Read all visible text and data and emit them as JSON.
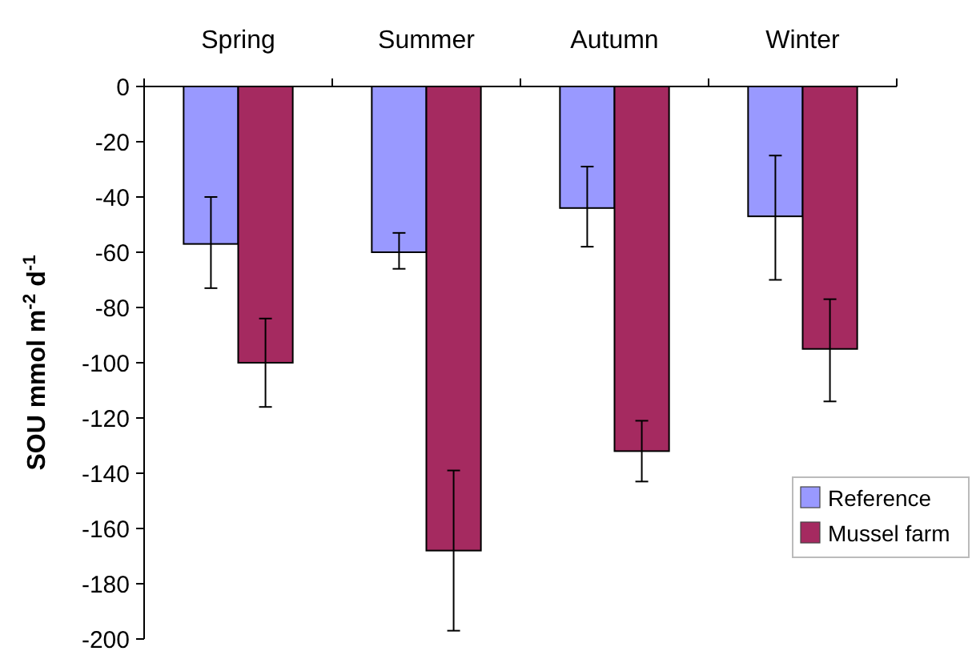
{
  "chart_data": {
    "type": "bar",
    "ylabel": "SOU mmol m$^{-2}$ d$^{-1}$",
    "categories": [
      "Spring",
      "Summer",
      "Autumn",
      "Winter"
    ],
    "series": [
      {
        "name": "Reference",
        "color": "#9999ff",
        "values": [
          -57,
          -60,
          -44,
          -47
        ],
        "errors": [
          [
            -73,
            -40
          ],
          [
            -66,
            -53
          ],
          [
            -58,
            -29
          ],
          [
            -70,
            -25
          ]
        ]
      },
      {
        "name": "Mussel farm",
        "color": "#a52a60",
        "values": [
          -100,
          -168,
          -132,
          -95
        ],
        "errors": [
          [
            -116,
            -84
          ],
          [
            -197,
            -139
          ],
          [
            -143,
            -121
          ],
          [
            -114,
            -77
          ]
        ]
      }
    ],
    "ylim": [
      -200,
      0
    ],
    "yticks": [
      0,
      -20,
      -40,
      -60,
      -80,
      -100,
      -120,
      -140,
      -160,
      -180,
      -200
    ],
    "grid": false,
    "legend": "bottom right"
  }
}
